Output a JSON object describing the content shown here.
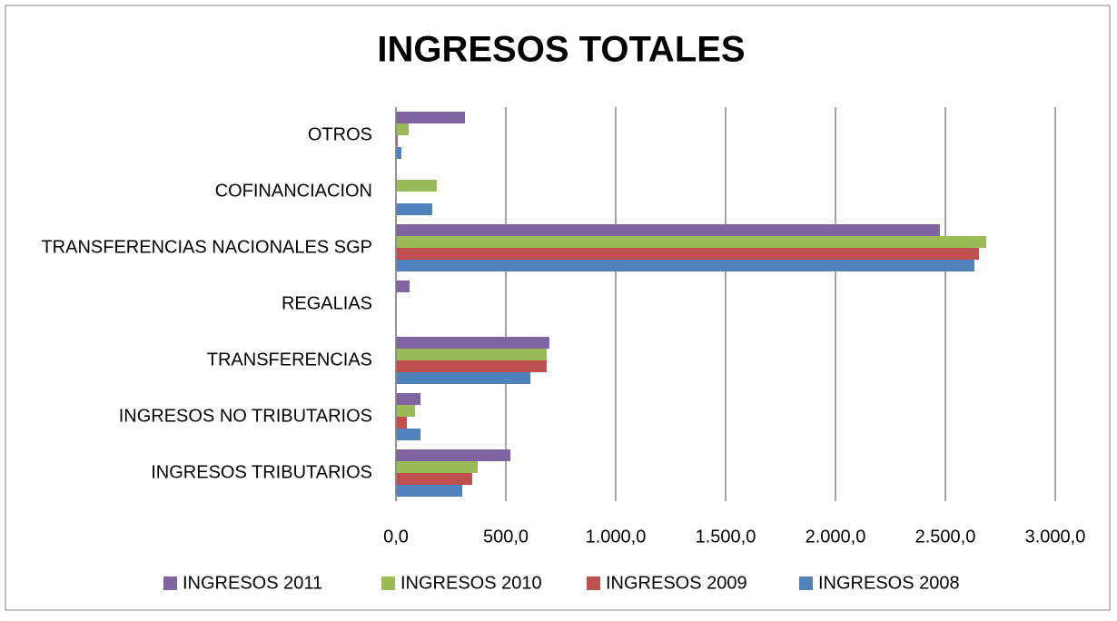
{
  "chart_data": {
    "type": "hbar",
    "title": "INGRESOS TOTALES",
    "categories": [
      "INGRESOS TRIBUTARIOS",
      "INGRESOS NO TRIBUTARIOS",
      "TRANSFERENCIAS",
      "REGALIAS",
      "TRANSFERENCIAS NACIONALES SGP",
      "COFINANCIACION",
      "OTROS"
    ],
    "series": [
      {
        "name": "INGRESOS 2011",
        "color": "#8064a2",
        "values": [
          521,
          112,
          698,
          62,
          2475,
          0,
          314
        ]
      },
      {
        "name": "INGRESOS 2010",
        "color": "#9bbb59",
        "values": [
          372,
          87,
          686,
          0,
          2686,
          186,
          58
        ]
      },
      {
        "name": "INGRESOS 2009",
        "color": "#c0504d",
        "values": [
          347,
          50,
          686,
          0,
          2653,
          0,
          8
        ]
      },
      {
        "name": "INGRESOS 2008",
        "color": "#4f81bd",
        "values": [
          302,
          112,
          612,
          0,
          2632,
          165,
          25
        ]
      }
    ],
    "xlim": [
      0,
      3000
    ],
    "xticks": [
      {
        "value": 0,
        "label": "0,0"
      },
      {
        "value": 500,
        "label": "500,0"
      },
      {
        "value": 1000,
        "label": "1.000,0"
      },
      {
        "value": 1500,
        "label": "1.500,0"
      },
      {
        "value": 2000,
        "label": "2.000,0"
      },
      {
        "value": 2500,
        "label": "2.500,0"
      },
      {
        "value": 3000,
        "label": "3.000,0"
      }
    ],
    "grid": true,
    "legend": "bottom"
  }
}
